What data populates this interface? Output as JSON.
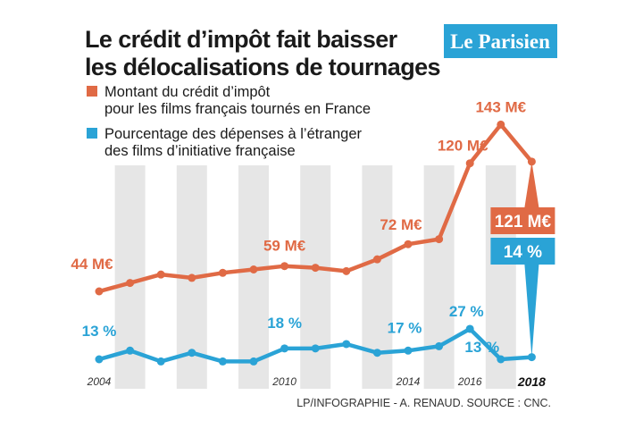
{
  "title_line1": "Le crédit d’impôt fait baisser",
  "title_line2": "les délocalisations de tournages",
  "logo": "Le Parisien",
  "legend": {
    "credit_line1": "Montant du crédit d’impôt",
    "credit_line2": "pour les films français tournés en France",
    "abroad_line1": "Pourcentage des dépenses à l’étranger",
    "abroad_line2": "des films d’initiative française"
  },
  "footer": "LP/INFOGRAPHIE - A. RENAUD.  SOURCE : CNC.",
  "colors": {
    "credit": "#e06a45",
    "abroad": "#2aa3d6",
    "band": "#e6e6e6",
    "logo_bg": "#2aa3d6"
  },
  "chart_data": {
    "type": "line",
    "title": "Le crédit d’impôt fait baisser les délocalisations de tournages",
    "x": [
      2004,
      2005,
      2006,
      2007,
      2008,
      2009,
      2010,
      2011,
      2012,
      2013,
      2014,
      2015,
      2016,
      2017,
      2018
    ],
    "x_tick_labels": [
      "2004",
      "2010",
      "2014",
      "2016",
      "2018"
    ],
    "series": [
      {
        "name": "Montant du crédit d’impôt pour les films français tournés en France",
        "unit": "M€",
        "values": [
          44,
          49,
          54,
          52,
          55,
          57,
          59,
          58,
          56,
          63,
          72,
          75,
          120,
          143,
          121
        ]
      },
      {
        "name": "Pourcentage des dépenses à l’étranger des films d’initiative française",
        "unit": "%",
        "values": [
          13,
          17,
          12,
          16,
          12,
          12,
          18,
          18,
          20,
          16,
          17,
          19,
          27,
          13,
          14
        ]
      }
    ],
    "data_labels": {
      "credit": [
        {
          "year": 2004,
          "text": "44 M€"
        },
        {
          "year": 2010,
          "text": "59 M€"
        },
        {
          "year": 2014,
          "text": "72 M€"
        },
        {
          "year": 2016,
          "text": "120 M€"
        },
        {
          "year": 2017,
          "text": "143 M€"
        },
        {
          "year": 2018,
          "text": "121 M€"
        }
      ],
      "abroad": [
        {
          "year": 2004,
          "text": "13 %"
        },
        {
          "year": 2010,
          "text": "18 %"
        },
        {
          "year": 2014,
          "text": "17 %"
        },
        {
          "year": 2016,
          "text": "27 %"
        },
        {
          "year": 2017,
          "text": "13 %"
        },
        {
          "year": 2018,
          "text": "14 %"
        }
      ]
    },
    "xlabel": "",
    "ylabel": "",
    "grid": false,
    "legend_position": "top-left"
  }
}
